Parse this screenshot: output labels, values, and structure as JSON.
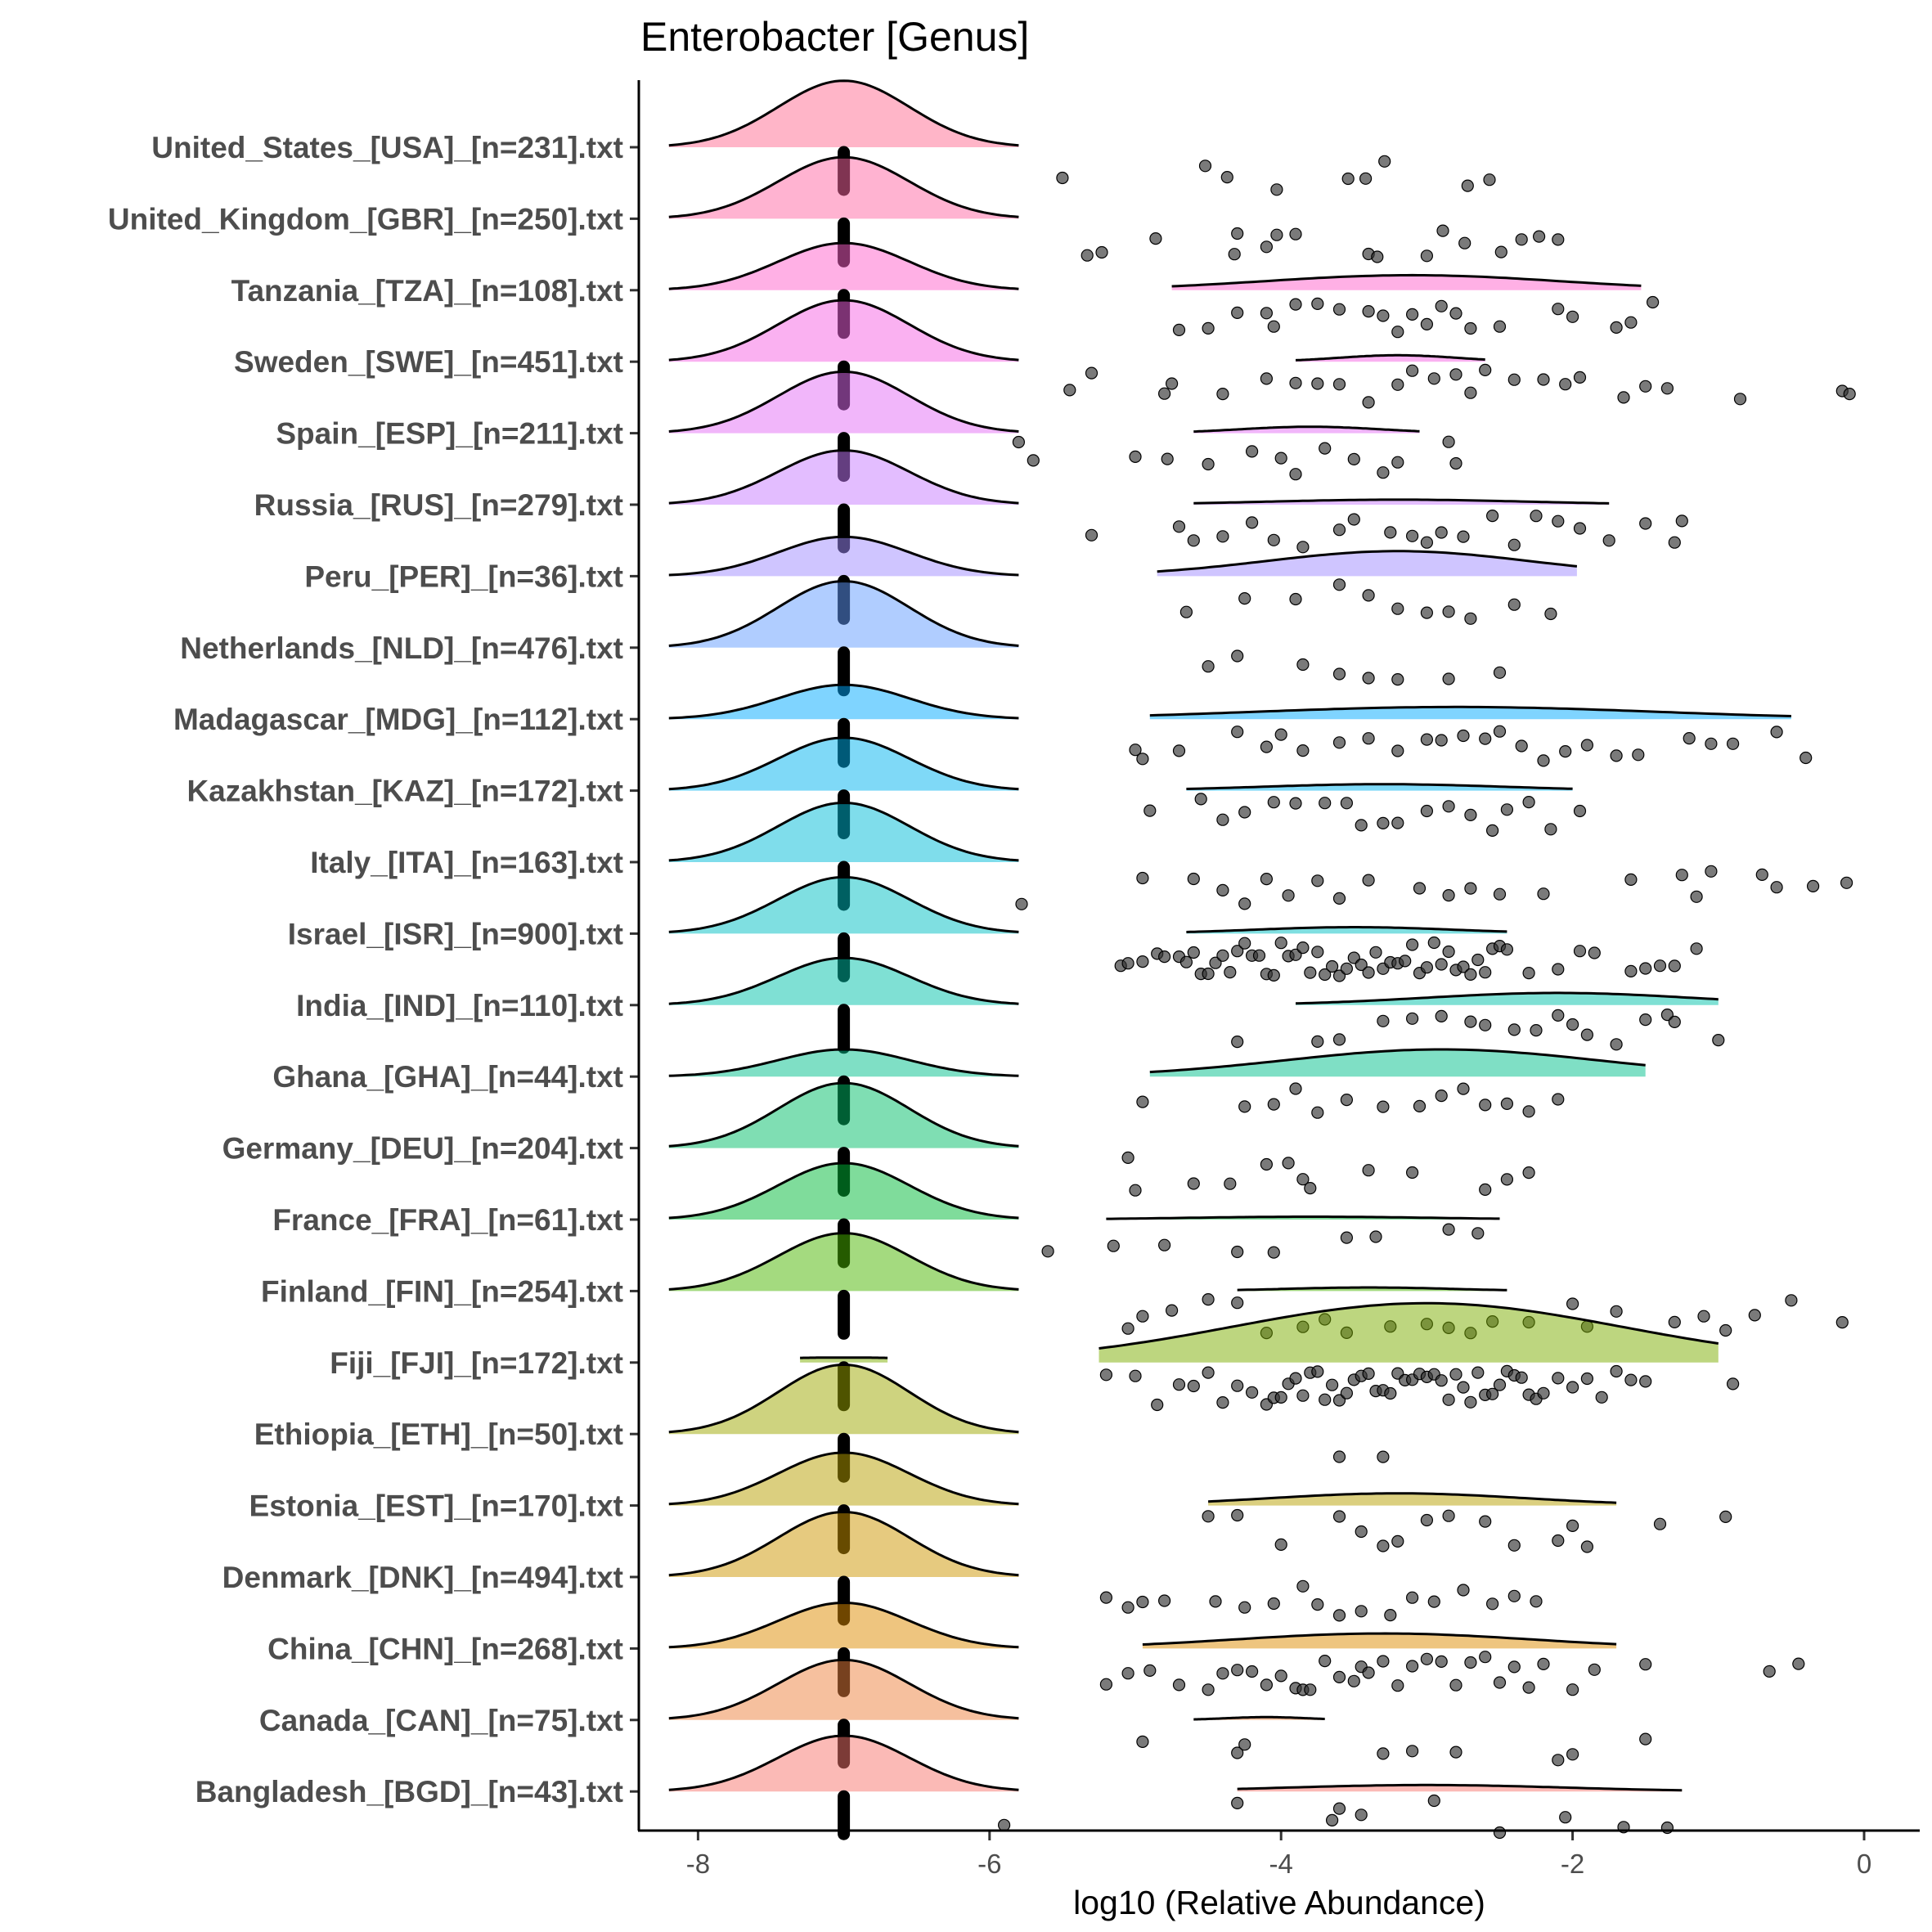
{
  "chart_data": {
    "type": "ridgeline-with-jittered-points",
    "title": "Enterobacter [Genus]",
    "xlabel": "log10 (Relative Abundance)",
    "ylabel": "",
    "xlim": [
      -8.4,
      0.4
    ],
    "xticks": [
      -8,
      -6,
      -4,
      -2,
      0
    ],
    "xtick_labels": [
      "-8",
      "-6",
      "-4",
      "-2",
      "0"
    ],
    "zero_value_position": -7,
    "point_color": "#333333",
    "rows": [
      {
        "label": "United_States_[USA]_[n=231].txt",
        "color": "#FF6C91",
        "zero_peak": 0.93,
        "density": null,
        "points": [
          -5.5,
          -4.52,
          -4.37,
          -4.03,
          -3.54,
          -3.42,
          -3.29,
          -2.72,
          -2.57
        ]
      },
      {
        "label": "United_Kingdom_[GBR]_[n=250].txt",
        "color": "#FF67A4",
        "zero_peak": 0.86,
        "density": null,
        "points": [
          -5.33,
          -5.23,
          -4.86,
          -4.32,
          -4.3,
          -4.1,
          -4.03,
          -3.9,
          -3.4,
          -3.34,
          -3.0,
          -2.89,
          -2.74,
          -2.49,
          -2.35,
          -2.23,
          -2.1
        ]
      },
      {
        "label": "Tanzania_[TZA]_[n=108].txt",
        "color": "#FF61CC",
        "zero_peak": 0.66,
        "density": {
          "min": -4.75,
          "max": -1.53,
          "mode": -3.1,
          "peak": 0.21
        },
        "points": [
          -4.7,
          -4.5,
          -4.3,
          -4.1,
          -4.05,
          -3.9,
          -3.75,
          -3.6,
          -3.4,
          -3.3,
          -3.2,
          -3.1,
          -3.0,
          -2.9,
          -2.8,
          -2.7,
          -2.5,
          -2.1,
          -2.0,
          -1.7,
          -1.6,
          -1.45
        ]
      },
      {
        "label": "Sweden_[SWE]_[n=451].txt",
        "color": "#F564E3",
        "zero_peak": 0.86,
        "density": {
          "min": -3.9,
          "max": -2.6,
          "mode": -3.2,
          "peak": 0.09
        },
        "points": [
          -5.45,
          -5.3,
          -4.8,
          -4.75,
          -4.4,
          -4.1,
          -3.9,
          -3.75,
          -3.6,
          -3.4,
          -3.2,
          -3.1,
          -2.95,
          -2.8,
          -2.7,
          -2.6,
          -2.4,
          -2.2,
          -2.05,
          -1.95,
          -1.65,
          -1.5,
          -1.35,
          -0.85,
          -0.15,
          -0.1
        ]
      },
      {
        "label": "Spain_[ESP]_[n=211].txt",
        "color": "#E36EF6",
        "zero_peak": 0.86,
        "density": {
          "min": -4.6,
          "max": -3.05,
          "mode": -3.8,
          "peak": 0.09
        },
        "points": [
          -5.8,
          -5.7,
          -5.0,
          -4.78,
          -4.5,
          -4.2,
          -4.0,
          -3.9,
          -3.7,
          -3.5,
          -3.3,
          -3.2,
          -2.85,
          -2.8
        ]
      },
      {
        "label": "Russia_[RUS]_[n=279].txt",
        "color": "#C77CFF",
        "zero_peak": 0.76,
        "density": {
          "min": -4.6,
          "max": -1.75,
          "mode": -3.2,
          "peak": 0.07
        },
        "points": [
          -5.3,
          -4.7,
          -4.6,
          -4.4,
          -4.2,
          -4.05,
          -3.85,
          -3.6,
          -3.5,
          -3.25,
          -3.1,
          -3.0,
          -2.9,
          -2.75,
          -2.55,
          -2.4,
          -2.25,
          -2.1,
          -1.95,
          -1.75,
          -1.5,
          -1.3,
          -1.25
        ]
      },
      {
        "label": "Peru_[PER]_[n=36].txt",
        "color": "#9F8CFF",
        "zero_peak": 0.55,
        "density": {
          "min": -4.85,
          "max": -1.97,
          "mode": -3.2,
          "peak": 0.35
        },
        "points": [
          -4.65,
          -4.25,
          -3.9,
          -3.6,
          -3.4,
          -3.2,
          -3.0,
          -2.85,
          -2.7,
          -2.4,
          -2.15
        ]
      },
      {
        "label": "Netherlands_[NLD]_[n=476].txt",
        "color": "#619CFF",
        "zero_peak": 0.93,
        "density": null,
        "points": [
          -4.5,
          -4.3,
          -3.85,
          -3.6,
          -3.4,
          -3.2,
          -2.85,
          -2.5
        ]
      },
      {
        "label": "Madagascar_[MDG]_[n=112].txt",
        "color": "#00A9FF",
        "zero_peak": 0.48,
        "density": {
          "min": -4.9,
          "max": -0.5,
          "mode": -2.8,
          "peak": 0.17
        },
        "points": [
          -5.0,
          -4.95,
          -4.7,
          -4.3,
          -4.1,
          -4.0,
          -3.85,
          -3.6,
          -3.4,
          -3.2,
          -3.0,
          -2.9,
          -2.75,
          -2.6,
          -2.5,
          -2.35,
          -2.2,
          -2.05,
          -1.9,
          -1.7,
          -1.55,
          -1.2,
          -1.05,
          -0.9,
          -0.6,
          -0.4
        ]
      },
      {
        "label": "Kazakhstan_[KAZ]_[n=172].txt",
        "color": "#00B4F0",
        "zero_peak": 0.74,
        "density": {
          "min": -4.65,
          "max": -2.0,
          "mode": -3.3,
          "peak": 0.09
        },
        "points": [
          -4.9,
          -4.55,
          -4.4,
          -4.25,
          -4.05,
          -3.9,
          -3.7,
          -3.55,
          -3.45,
          -3.3,
          -3.2,
          -3.0,
          -2.85,
          -2.7,
          -2.55,
          -2.45,
          -2.3,
          -2.15,
          -1.95
        ]
      },
      {
        "label": "Italy_[ITA]_[n=163].txt",
        "color": "#00BCD8",
        "zero_peak": 0.83,
        "density": null,
        "points": [
          -5.78,
          -4.95,
          -4.6,
          -4.4,
          -4.25,
          -4.1,
          -3.95,
          -3.75,
          -3.6,
          -3.4,
          -3.05,
          -2.85,
          -2.7,
          -2.5,
          -2.2,
          -1.6,
          -1.25,
          -1.15,
          -1.05,
          -0.7,
          -0.6,
          -0.35,
          -0.12
        ]
      },
      {
        "label": "Israel_[ISR]_[n=900].txt",
        "color": "#00BFC4",
        "zero_peak": 0.79,
        "density": {
          "min": -4.65,
          "max": -2.45,
          "mode": -3.5,
          "peak": 0.09
        },
        "points": [
          -5.1,
          -5.05,
          -4.95,
          -4.85,
          -4.8,
          -4.7,
          -4.65,
          -4.6,
          -4.55,
          -4.5,
          -4.45,
          -4.4,
          -4.35,
          -4.3,
          -4.25,
          -4.2,
          -4.15,
          -4.1,
          -4.05,
          -4.0,
          -3.95,
          -3.9,
          -3.85,
          -3.8,
          -3.75,
          -3.7,
          -3.65,
          -3.6,
          -3.55,
          -3.5,
          -3.45,
          -3.4,
          -3.35,
          -3.3,
          -3.25,
          -3.2,
          -3.15,
          -3.1,
          -3.05,
          -3.0,
          -2.95,
          -2.9,
          -2.85,
          -2.8,
          -2.75,
          -2.7,
          -2.65,
          -2.6,
          -2.55,
          -2.5,
          -2.45,
          -2.3,
          -2.1,
          -1.95,
          -1.85,
          -1.6,
          -1.5,
          -1.4,
          -1.3,
          -1.15
        ]
      },
      {
        "label": "India_[IND]_[n=110].txt",
        "color": "#00C1A9",
        "zero_peak": 0.66,
        "density": {
          "min": -3.9,
          "max": -1.0,
          "mode": -2.1,
          "peak": 0.17
        },
        "points": [
          -4.3,
          -3.75,
          -3.6,
          -3.3,
          -3.1,
          -2.9,
          -2.7,
          -2.6,
          -2.4,
          -2.25,
          -2.1,
          -2.0,
          -1.9,
          -1.7,
          -1.5,
          -1.35,
          -1.3,
          -1.0
        ]
      },
      {
        "label": "Ghana_[GHA]_[n=44].txt",
        "color": "#00C08B",
        "zero_peak": 0.38,
        "density": {
          "min": -4.9,
          "max": -1.5,
          "mode": -2.9,
          "peak": 0.38
        },
        "points": [
          -4.95,
          -4.25,
          -4.05,
          -3.9,
          -3.75,
          -3.55,
          -3.3,
          -3.05,
          -2.9,
          -2.75,
          -2.6,
          -2.45,
          -2.3,
          -2.1
        ]
      },
      {
        "label": "Germany_[DEU]_[n=204].txt",
        "color": "#00BE67",
        "zero_peak": 0.91,
        "density": null,
        "points": [
          -5.05,
          -5.0,
          -4.6,
          -4.35,
          -4.1,
          -3.95,
          -3.85,
          -3.8,
          -3.4,
          -3.1,
          -2.6,
          -2.45,
          -2.3
        ]
      },
      {
        "label": "France_[FRA]_[n=61].txt",
        "color": "#00BA38",
        "zero_peak": 0.79,
        "density": {
          "min": -5.2,
          "max": -2.5,
          "mode": -3.8,
          "peak": 0.04
        },
        "points": [
          -5.6,
          -5.15,
          -4.8,
          -4.3,
          -4.05,
          -3.55,
          -3.35,
          -2.85,
          -2.65
        ]
      },
      {
        "label": "Finland_[FIN]_[n=254].txt",
        "color": "#49B500",
        "zero_peak": 0.81,
        "density": {
          "min": -4.3,
          "max": -2.45,
          "mode": -3.4,
          "peak": 0.05
        },
        "points": [
          -5.05,
          -4.95,
          -4.75,
          -4.5,
          -4.3,
          -4.1,
          -3.85,
          -3.7,
          -3.55,
          -3.25,
          -3.0,
          -2.85,
          -2.7,
          -2.55,
          -2.3,
          -2.0,
          -1.9,
          -1.7,
          -1.3,
          -1.1,
          -0.95,
          -0.75,
          -0.5,
          -0.15
        ]
      },
      {
        "label": "Fiji_[FJI]_[n=172].txt",
        "color": "#7CAE00",
        "zero_peak": 0.07,
        "density": {
          "min": -5.25,
          "max": -1.0,
          "mode": -3.0,
          "peak": 0.83
        },
        "points": [
          -5.2,
          -5.0,
          -4.85,
          -4.7,
          -4.6,
          -4.5,
          -4.4,
          -4.3,
          -4.2,
          -4.1,
          -4.05,
          -4.0,
          -3.95,
          -3.9,
          -3.85,
          -3.8,
          -3.75,
          -3.7,
          -3.65,
          -3.6,
          -3.55,
          -3.5,
          -3.45,
          -3.4,
          -3.35,
          -3.3,
          -3.25,
          -3.2,
          -3.15,
          -3.1,
          -3.05,
          -3.0,
          -2.95,
          -2.9,
          -2.85,
          -2.8,
          -2.75,
          -2.7,
          -2.65,
          -2.6,
          -2.55,
          -2.5,
          -2.45,
          -2.4,
          -2.35,
          -2.3,
          -2.25,
          -2.2,
          -2.1,
          -2.0,
          -1.9,
          -1.8,
          -1.7,
          -1.6,
          -1.5,
          -0.9
        ]
      },
      {
        "label": "Ethiopia_[ETH]_[n=50].txt",
        "color": "#9DA700",
        "zero_peak": 0.97,
        "density": null,
        "points": [
          -3.6,
          -3.3
        ]
      },
      {
        "label": "Estonia_[EST]_[n=170].txt",
        "color": "#B79F00",
        "zero_peak": 0.74,
        "density": {
          "min": -4.5,
          "max": -1.7,
          "mode": -3.2,
          "peak": 0.17
        },
        "points": [
          -4.5,
          -4.3,
          -4.0,
          -3.6,
          -3.45,
          -3.3,
          -3.2,
          -3.0,
          -2.85,
          -2.6,
          -2.4,
          -2.1,
          -2.0,
          -1.9,
          -1.4,
          -0.95
        ]
      },
      {
        "label": "Denmark_[DNK]_[n=494].txt",
        "color": "#CD9600",
        "zero_peak": 0.91,
        "density": null,
        "points": [
          -5.2,
          -5.05,
          -4.95,
          -4.8,
          -4.45,
          -4.25,
          -4.05,
          -3.85,
          -3.75,
          -3.6,
          -3.45,
          -3.25,
          -3.1,
          -2.95,
          -2.75,
          -2.55,
          -2.4,
          -2.25
        ]
      },
      {
        "label": "China_[CHN]_[n=268].txt",
        "color": "#DE8C00",
        "zero_peak": 0.64,
        "density": {
          "min": -4.95,
          "max": -1.7,
          "mode": -3.3,
          "peak": 0.21
        },
        "points": [
          -5.2,
          -5.05,
          -4.9,
          -4.7,
          -4.5,
          -4.4,
          -4.3,
          -4.2,
          -4.1,
          -4.0,
          -3.9,
          -3.85,
          -3.8,
          -3.7,
          -3.6,
          -3.5,
          -3.45,
          -3.4,
          -3.3,
          -3.2,
          -3.1,
          -3.0,
          -2.9,
          -2.8,
          -2.7,
          -2.6,
          -2.5,
          -2.4,
          -2.3,
          -2.2,
          -2.0,
          -1.85,
          -1.5,
          -0.65,
          -0.45
        ]
      },
      {
        "label": "Canada_[CAN]_[n=75].txt",
        "color": "#ED813E",
        "zero_peak": 0.84,
        "density": {
          "min": -4.6,
          "max": -3.7,
          "mode": -4.1,
          "peak": 0.04
        },
        "points": [
          -4.95,
          -4.3,
          -4.25,
          -3.3,
          -3.1,
          -2.8,
          -2.1,
          -2.0,
          -1.5
        ]
      },
      {
        "label": "Bangladesh_[BGD]_[n=43].txt",
        "color": "#F8766D",
        "zero_peak": 0.78,
        "density": {
          "min": -4.3,
          "max": -1.25,
          "mode": -3.0,
          "peak": 0.09
        },
        "points": [
          -5.9,
          -4.3,
          -3.65,
          -3.6,
          -3.45,
          -2.95,
          -2.5,
          -2.05,
          -1.65,
          -1.35
        ]
      }
    ]
  }
}
